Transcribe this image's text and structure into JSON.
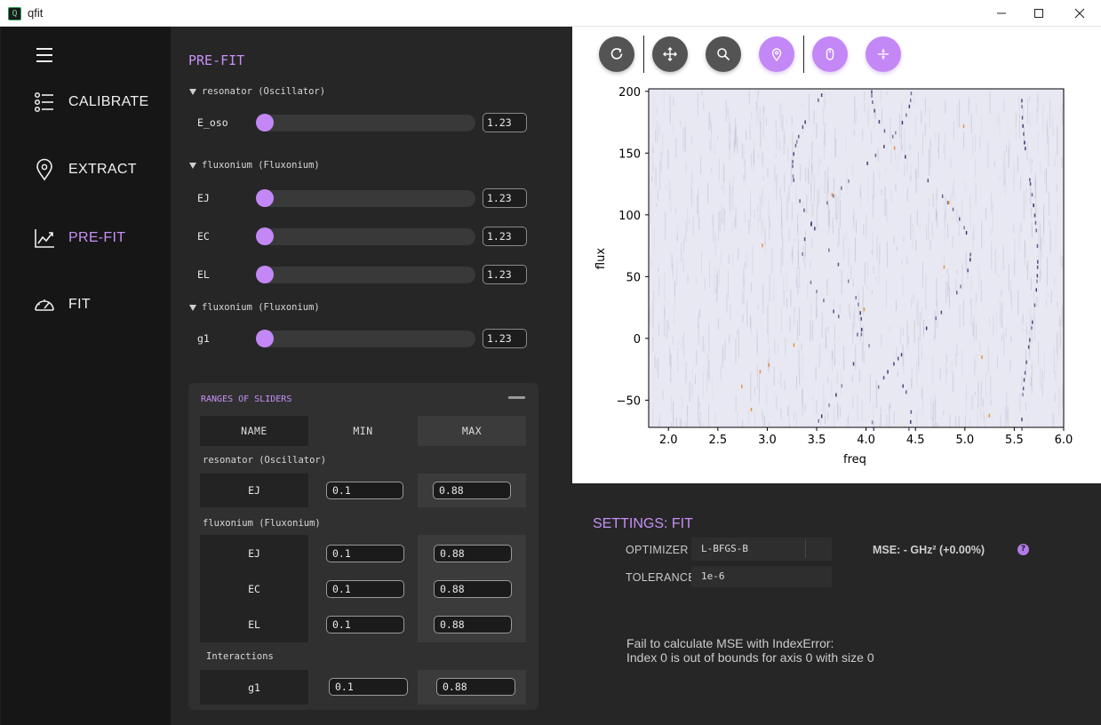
{
  "window": {
    "title": "qfit",
    "icon_letter": "Q"
  },
  "sidebar": {
    "items": [
      {
        "label": "CALIBRATE",
        "icon": "list-icon"
      },
      {
        "label": "EXTRACT",
        "icon": "location-pin-icon"
      },
      {
        "label": "PRE-FIT",
        "icon": "trend-chart-icon",
        "active": true
      },
      {
        "label": "FIT",
        "icon": "speedometer-icon"
      }
    ]
  },
  "prefit": {
    "title": "PRE-FIT",
    "groups": [
      {
        "label": "resonator (Oscillator)",
        "params": [
          {
            "name": "E_oso",
            "value": "1.23"
          }
        ]
      },
      {
        "label": "fluxonium (Fluxonium)",
        "params": [
          {
            "name": "EJ",
            "value": "1.23"
          },
          {
            "name": "EC",
            "value": "1.23"
          },
          {
            "name": "EL",
            "value": "1.23"
          }
        ]
      },
      {
        "label": "fluxonium (Fluxonium)",
        "params": [
          {
            "name": "g1",
            "value": "1.23"
          }
        ]
      }
    ],
    "ranges": {
      "title": "RANGES OF SLIDERS",
      "headers": {
        "name": "NAME",
        "min": "MIN",
        "max": "MAX"
      },
      "groups": [
        {
          "label": "resonator (Oscillator)",
          "rows": [
            {
              "name": "EJ",
              "min": "0.1",
              "max": "0.88"
            }
          ]
        },
        {
          "label": "fluxonium (Fluxonium)",
          "rows": [
            {
              "name": "EJ",
              "min": "0.1",
              "max": "0.88"
            },
            {
              "name": "EC",
              "min": "0.1",
              "max": "0.88"
            },
            {
              "name": "EL",
              "min": "0.1",
              "max": "0.88"
            }
          ]
        },
        {
          "label": "Interactions",
          "rows": [
            {
              "name": "g1",
              "min": "0.1",
              "max": "0.88"
            }
          ]
        }
      ]
    }
  },
  "toolbar": {
    "tools": [
      {
        "icon": "reset-icon",
        "style": "gray"
      },
      {
        "icon": "pan-icon",
        "style": "gray"
      },
      {
        "icon": "zoom-icon",
        "style": "gray"
      },
      {
        "icon": "select-point-icon",
        "style": "purple"
      },
      {
        "icon": "mouse-icon",
        "style": "purple"
      },
      {
        "icon": "swap-icon",
        "style": "purple"
      }
    ]
  },
  "chart_data": {
    "type": "heatmap",
    "title": "",
    "xlabel": "freq",
    "ylabel": "flux",
    "xlim": [
      1.8,
      6.0
    ],
    "ylim": [
      -72,
      202
    ],
    "xticks": [
      "2.0",
      "2.5",
      "3.0",
      "3.5",
      "4.0",
      "4.5",
      "5.0",
      "5.5",
      "6.0"
    ],
    "yticks": [
      "200",
      "150",
      "100",
      "50",
      "0",
      "−50"
    ],
    "colors": {
      "background": "#e8e8f2",
      "noise": "#b4b4cc",
      "lines": "#2c2c6a",
      "highlights": "#e8892a"
    },
    "grid": false
  },
  "settings": {
    "title": "SETTINGS: FIT",
    "optimizer_label": "OPTIMIZER",
    "optimizer_value": "L-BFGS-B",
    "tolerance_label": "TOLERANCE",
    "tolerance_value": "1e-6",
    "mse_text": "MSE:  - GHz²  (+0.00%)",
    "help_icon": "?",
    "error_line1": "Fail to calculate MSE with IndexError:",
    "error_line2": "Index 0 is out of bounds for axis 0 with size 0"
  }
}
